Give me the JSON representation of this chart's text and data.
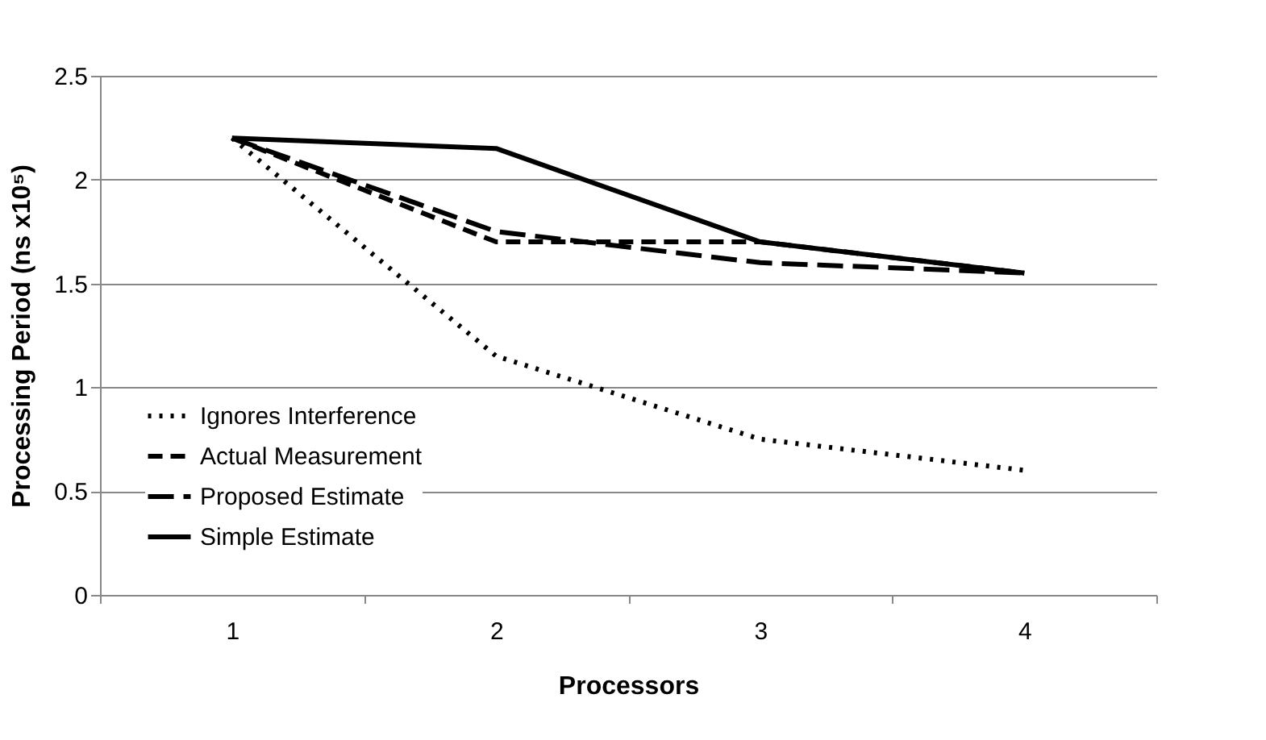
{
  "chart_data": {
    "type": "line",
    "xlabel": "Processors",
    "ylabel": "Processing Period (ns x10⁵)",
    "categories": [
      "1",
      "2",
      "3",
      "4"
    ],
    "series": [
      {
        "name": "Ignores Interference",
        "color": "#000000",
        "line_style": "dotted",
        "values": [
          2.2,
          1.15,
          0.75,
          0.6
        ]
      },
      {
        "name": "Actual Measurement",
        "color": "#000000",
        "line_style": "dashed",
        "values": [
          2.2,
          1.7,
          1.7,
          1.55
        ]
      },
      {
        "name": "Proposed Estimate",
        "color": "#000000",
        "line_style": "dashed",
        "values": [
          2.2,
          1.75,
          1.6,
          1.55
        ]
      },
      {
        "name": "Simple Estimate",
        "color": "#000000",
        "line_style": "solid",
        "values": [
          2.2,
          2.15,
          1.7,
          1.55
        ]
      }
    ],
    "ylim": [
      0,
      2.5
    ],
    "yticks": [
      0,
      0.5,
      1,
      1.5,
      2,
      2.5
    ],
    "grid": "y",
    "legend": "bottom left",
    "marker": "none"
  }
}
